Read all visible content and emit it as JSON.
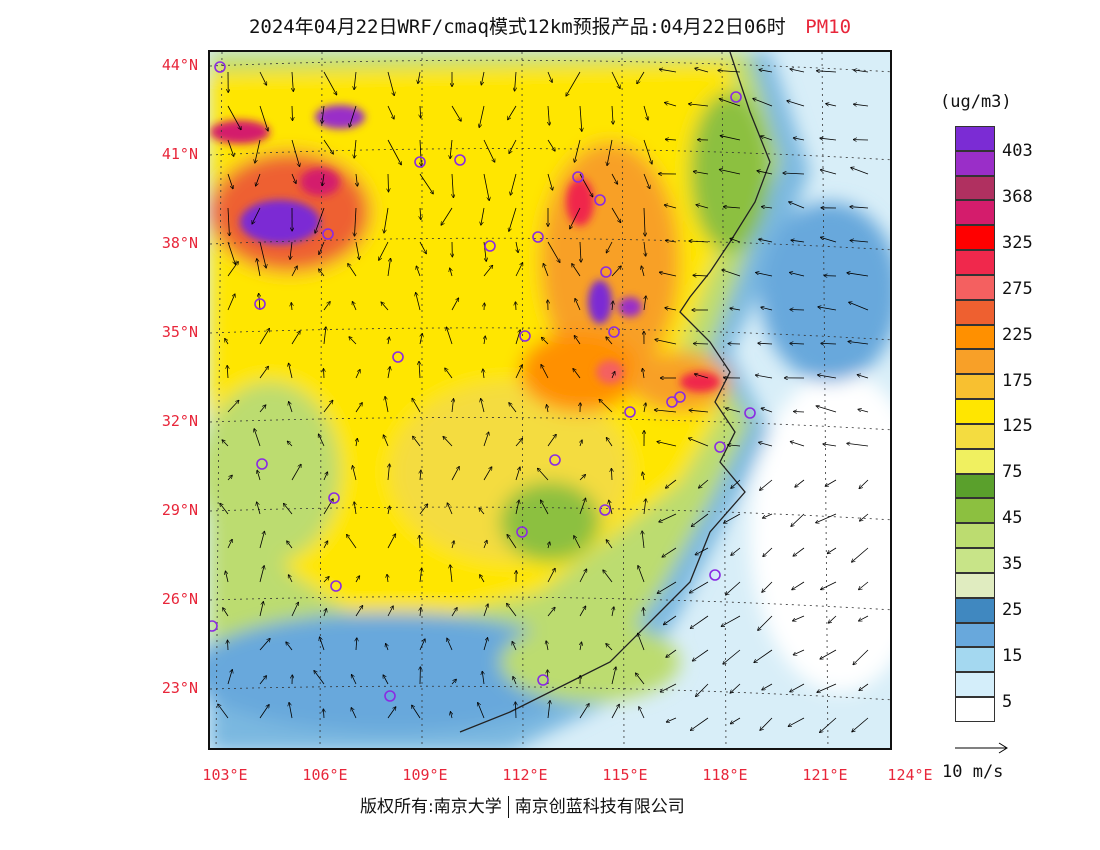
{
  "title": {
    "main": "2024年04月22日WRF/cmaq模式12km预报产品:04月22日06时",
    "pollutant": "PM10"
  },
  "map": {
    "lat_labels": [
      "44°N",
      "41°N",
      "38°N",
      "35°N",
      "32°N",
      "29°N",
      "26°N",
      "23°N"
    ],
    "lon_labels": [
      "103°E",
      "106°E",
      "109°E",
      "112°E",
      "115°E",
      "118°E",
      "121°E",
      "124°E"
    ]
  },
  "legend": {
    "unit": "(ug/m3)",
    "labels": [
      "403",
      "368",
      "325",
      "275",
      "225",
      "175",
      "125",
      "75",
      "45",
      "35",
      "25",
      "15",
      "5"
    ],
    "colors": [
      "#7b2cd4",
      "#9a2ec8",
      "#b03060",
      "#d41c6c",
      "#ff0000",
      "#f0284c",
      "#f46060",
      "#ee6030",
      "#ff9000",
      "#f8a028",
      "#f8c030",
      "#ffe600",
      "#f4dc40",
      "#f0f060",
      "#5aa02c",
      "#8cc040",
      "#bcdc70",
      "#c8e488",
      "#e0ecc0",
      "#4088c0",
      "#68a8dc",
      "#a4d8f0",
      "#d4eefa",
      "#ffffff"
    ]
  },
  "vector_ref": {
    "label": "10 m/s"
  },
  "footer": {
    "left": "版权所有:南京大学",
    "right": "南京创蓝科技有限公司"
  }
}
